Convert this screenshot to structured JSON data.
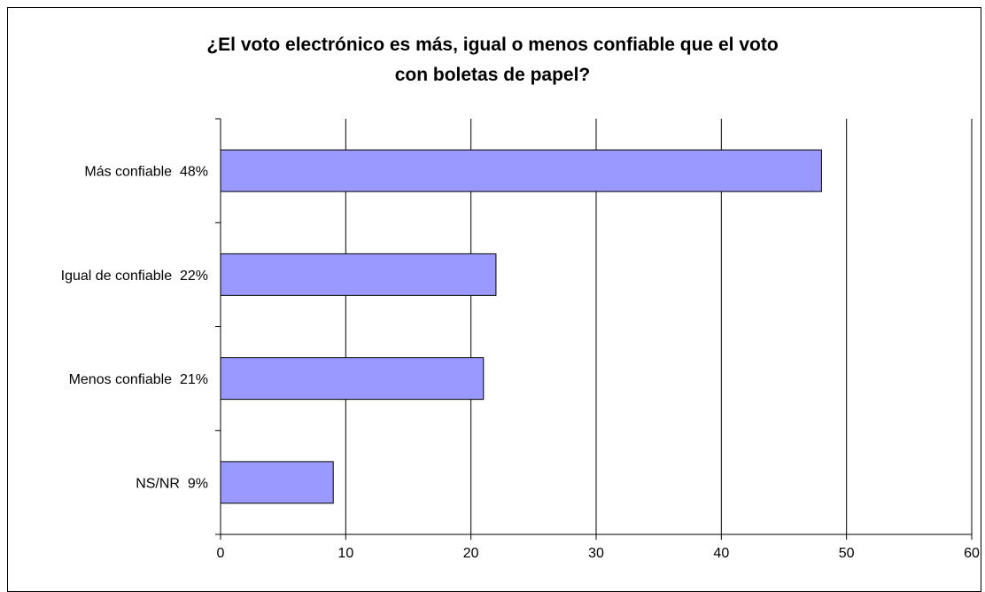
{
  "chart_data": {
    "type": "bar",
    "orientation": "horizontal",
    "title_lines": [
      "¿El voto electrónico es más, igual o menos confiable que el voto",
      "con boletas de papel?"
    ],
    "categories": [
      "Más confiable  48%",
      "Igual de confiable  22%",
      "Menos confiable  21%",
      "NS/NR  9%"
    ],
    "values": [
      48,
      22,
      21,
      9
    ],
    "xlim": [
      0,
      60
    ],
    "x_ticks": [
      "0",
      "10",
      "20",
      "30",
      "40",
      "50",
      "60"
    ],
    "grid": "vertical",
    "legend": "none"
  },
  "colors": {
    "bar_fill": "#9999ff",
    "bar_stroke": "#000000",
    "grid": "#000000",
    "background": "#ffffff"
  }
}
